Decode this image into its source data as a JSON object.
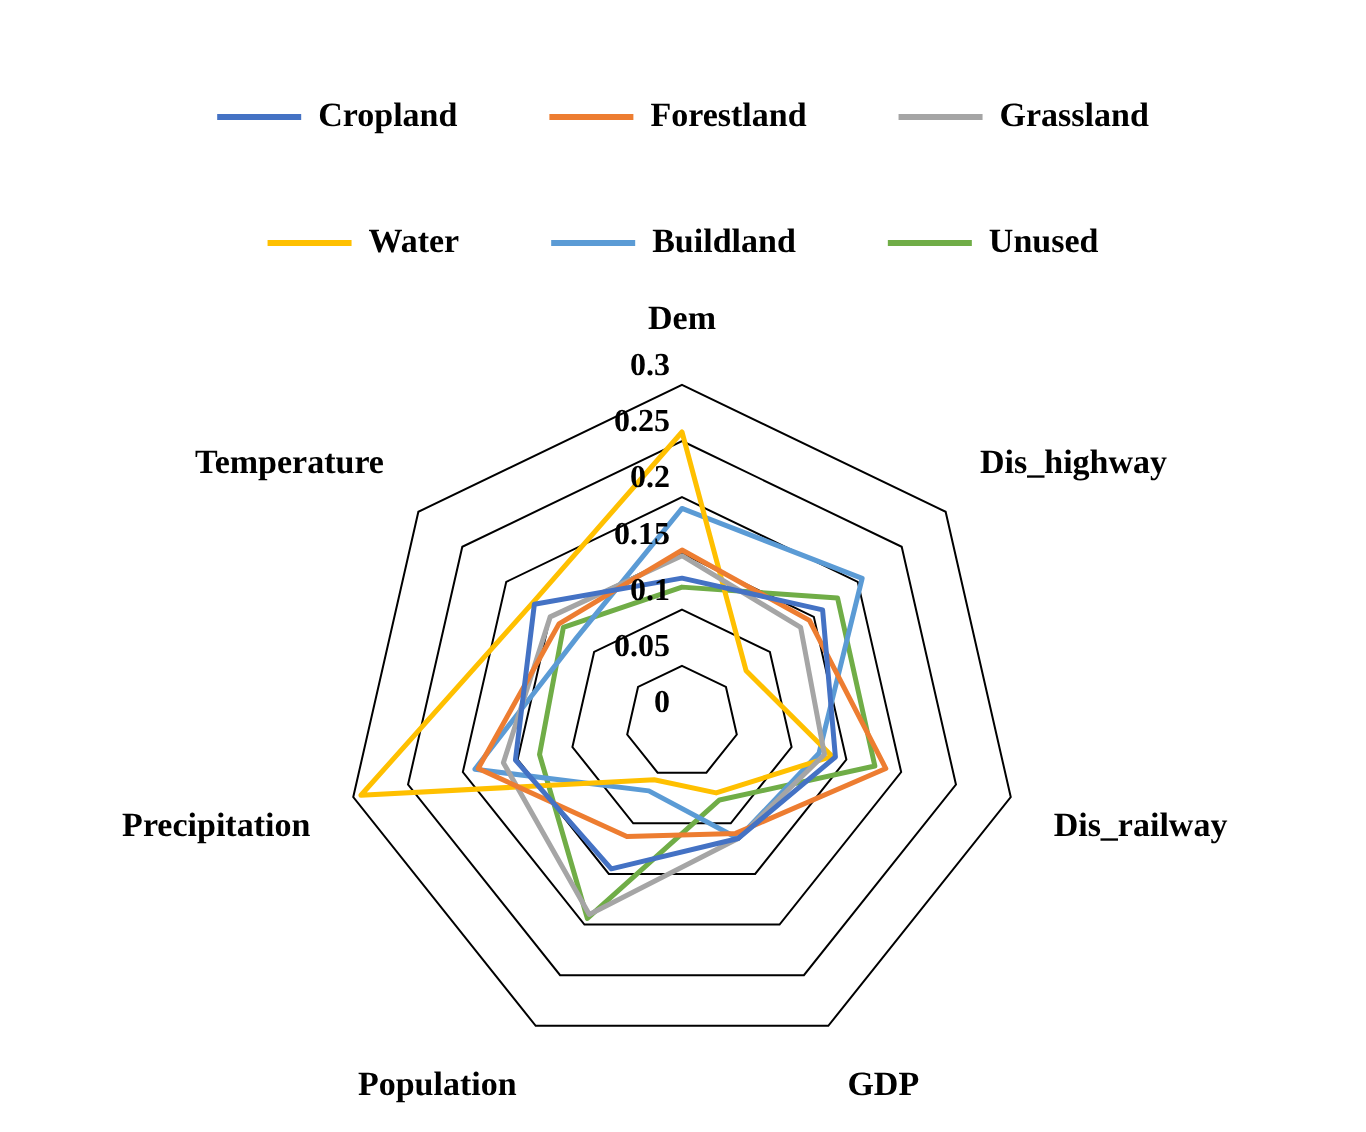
{
  "chart_data": {
    "type": "radar",
    "categories": [
      "Dem",
      "Dis_highway",
      "Dis_railway",
      "GDP",
      "Population",
      "Precipitation",
      "Temperature"
    ],
    "ylim": [
      0,
      0.3
    ],
    "yticks": [
      0,
      0.05,
      0.1,
      0.15,
      0.2,
      0.25,
      0.3
    ],
    "grid": true,
    "legend": "top",
    "marker": "none",
    "line_style": "solid",
    "series": [
      {
        "name": "Cropland",
        "color": "#4472c4",
        "values": [
          0.128,
          0.16,
          0.14,
          0.115,
          0.145,
          0.152,
          0.168
        ]
      },
      {
        "name": "Forestland",
        "color": "#ed7d31",
        "values": [
          0.153,
          0.145,
          0.186,
          0.11,
          0.113,
          0.186,
          0.14
        ]
      },
      {
        "name": "Grassland",
        "color": "#a5a5a5",
        "values": [
          0.148,
          0.135,
          0.13,
          0.115,
          0.19,
          0.163,
          0.15
        ]
      },
      {
        "name": "Water",
        "color": "#ffc000",
        "values": [
          0.258,
          0.073,
          0.137,
          0.07,
          0.057,
          0.293,
          0.17
        ]
      },
      {
        "name": "Buildland",
        "color": "#5b9bd5",
        "values": [
          0.19,
          0.205,
          0.125,
          0.115,
          0.068,
          0.189,
          0.12
        ]
      },
      {
        "name": "Unused",
        "color": "#70ad47",
        "values": [
          0.12,
          0.177,
          0.176,
          0.077,
          0.194,
          0.13,
          0.135
        ]
      }
    ]
  }
}
